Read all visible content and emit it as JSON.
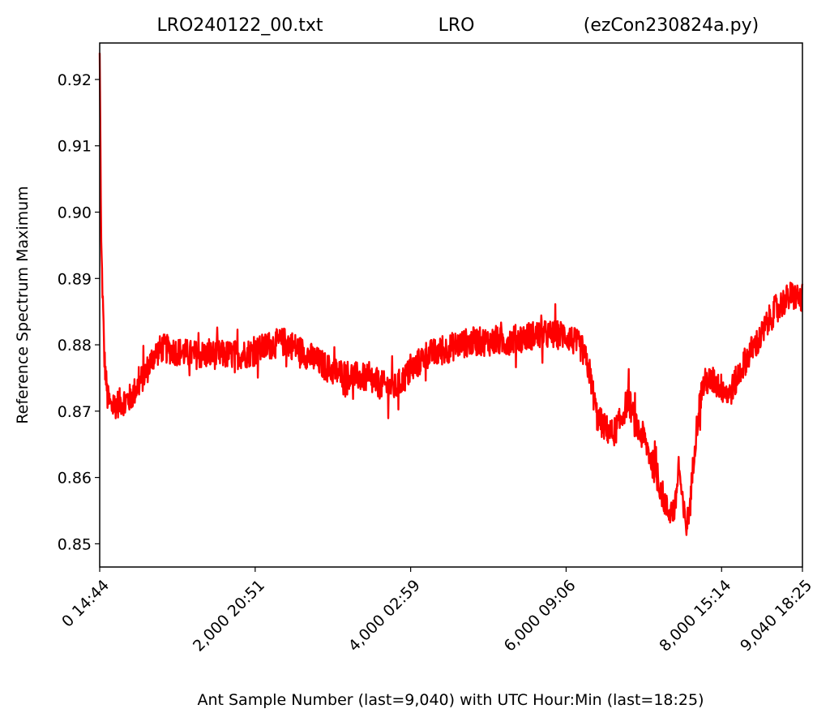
{
  "chart_data": {
    "type": "line",
    "title_parts": [
      "LRO240122_00.txt",
      "LRO",
      "(ezCon230824a.py)"
    ],
    "xlabel": "Ant Sample Number (last=9,040) with UTC Hour:Min (last=18:25)",
    "ylabel": "Reference Spectrum Maximum",
    "xlim": [
      0,
      9040
    ],
    "ylim": [
      0.8465,
      0.9255
    ],
    "grid": false,
    "line_color": "#ff0000",
    "x_ticks": [
      {
        "value": 0,
        "label": "0  14:44"
      },
      {
        "value": 2000,
        "label": "2,000  20:51"
      },
      {
        "value": 4000,
        "label": "4,000  02:59"
      },
      {
        "value": 6000,
        "label": "6,000  09:06"
      },
      {
        "value": 8000,
        "label": "8,000  15:14"
      },
      {
        "value": 9040,
        "label": "9,040  18:25"
      }
    ],
    "y_ticks": [
      {
        "value": 0.85,
        "label": "0.85"
      },
      {
        "value": 0.86,
        "label": "0.86"
      },
      {
        "value": 0.87,
        "label": "0.87"
      },
      {
        "value": 0.88,
        "label": "0.88"
      },
      {
        "value": 0.89,
        "label": "0.89"
      },
      {
        "value": 0.9,
        "label": "0.90"
      },
      {
        "value": 0.91,
        "label": "0.91"
      },
      {
        "value": 0.92,
        "label": "0.92"
      }
    ],
    "series": [
      {
        "noise_amplitude": 0.0022,
        "x": [
          0,
          20,
          60,
          100,
          150,
          200,
          300,
          400,
          500,
          600,
          700,
          800,
          1000,
          1200,
          1400,
          1600,
          1800,
          2000,
          2200,
          2400,
          2600,
          2800,
          3000,
          3200,
          3400,
          3600,
          3800,
          4000,
          4200,
          4400,
          4600,
          4800,
          5000,
          5200,
          5400,
          5600,
          5800,
          6000,
          6100,
          6200,
          6300,
          6400,
          6500,
          6600,
          6700,
          6800,
          6900,
          7000,
          7100,
          7200,
          7300,
          7400,
          7450,
          7500,
          7550,
          7600,
          7650,
          7700,
          7750,
          7800,
          7900,
          8000,
          8100,
          8200,
          8300,
          8400,
          8500,
          8600,
          8700,
          8800,
          8900,
          9000,
          9040
        ],
        "y": [
          0.924,
          0.895,
          0.878,
          0.872,
          0.8705,
          0.871,
          0.8715,
          0.872,
          0.874,
          0.876,
          0.8785,
          0.8795,
          0.879,
          0.8785,
          0.8785,
          0.8785,
          0.8785,
          0.879,
          0.88,
          0.8805,
          0.879,
          0.8775,
          0.876,
          0.8755,
          0.875,
          0.874,
          0.8735,
          0.876,
          0.8785,
          0.879,
          0.88,
          0.8805,
          0.8805,
          0.8805,
          0.881,
          0.8815,
          0.8815,
          0.8815,
          0.8805,
          0.8795,
          0.876,
          0.869,
          0.8675,
          0.8665,
          0.8685,
          0.872,
          0.8675,
          0.866,
          0.8625,
          0.859,
          0.855,
          0.855,
          0.862,
          0.8555,
          0.8525,
          0.8565,
          0.8645,
          0.8695,
          0.8735,
          0.8745,
          0.8745,
          0.8735,
          0.8725,
          0.875,
          0.8775,
          0.8795,
          0.881,
          0.8835,
          0.8855,
          0.8865,
          0.8875,
          0.887,
          0.887
        ]
      }
    ]
  }
}
